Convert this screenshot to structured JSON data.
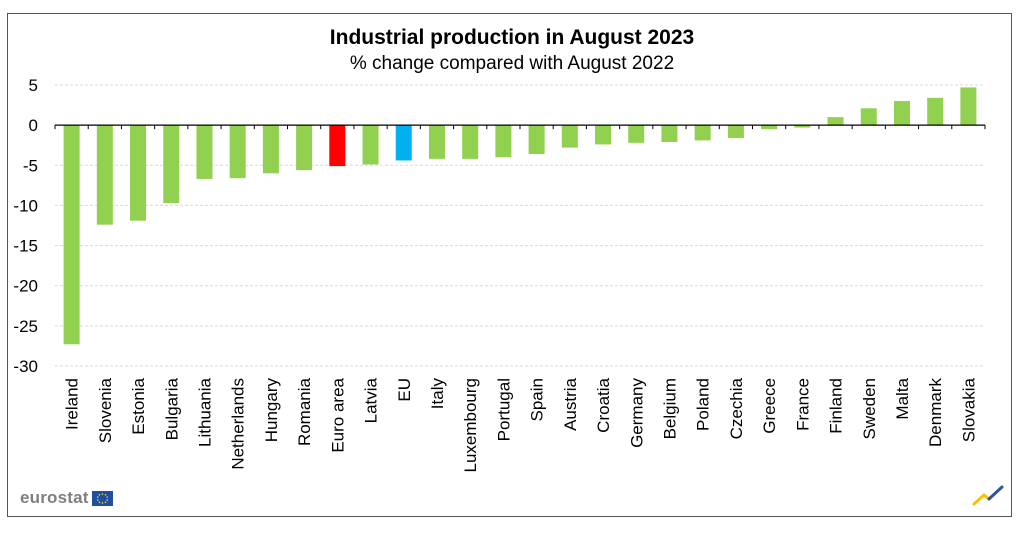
{
  "title": "Industrial production in August 2023",
  "subtitle": "% change compared with August 2022",
  "logo_text": "eurostat",
  "colors": {
    "default_bar": "#92d050",
    "euro_area_bar": "#ff0000",
    "eu_bar": "#00b0f0",
    "grid": "#d9d9d9",
    "axis": "#000000",
    "logo_text": "#7f7f7f",
    "eu_flag_blue": "#1f4fa3",
    "eu_flag_stars": "#ffdd00"
  },
  "chart_data": {
    "type": "bar",
    "categories": [
      "Ireland",
      "Slovenia",
      "Estonia",
      "Bulgaria",
      "Lithuania",
      "Netherlands",
      "Hungary",
      "Romania",
      "Euro area",
      "Latvia",
      "EU",
      "Italy",
      "Luxembourg",
      "Portugal",
      "Spain",
      "Austria",
      "Croatia",
      "Germany",
      "Belgium",
      "Poland",
      "Czechia",
      "Greece",
      "France",
      "Finland",
      "Sweden",
      "Malta",
      "Denmark",
      "Slovakia"
    ],
    "values": [
      -27.3,
      -12.4,
      -11.9,
      -9.7,
      -6.7,
      -6.6,
      -6.0,
      -5.6,
      -5.1,
      -4.9,
      -4.4,
      -4.2,
      -4.2,
      -4.0,
      -3.6,
      -2.8,
      -2.4,
      -2.2,
      -2.1,
      -1.9,
      -1.6,
      -0.5,
      -0.3,
      1.0,
      2.1,
      3.0,
      3.4,
      4.7
    ],
    "highlight": {
      "Euro area": "euro_area_bar",
      "EU": "eu_bar"
    },
    "yticks": [
      5,
      0,
      -5,
      -10,
      -15,
      -20,
      -25,
      -30
    ],
    "ylim": [
      -30,
      5
    ],
    "grid": true,
    "title": "Industrial production in August 2023",
    "subtitle": "% change compared with August 2022",
    "xlabel": "",
    "ylabel": ""
  }
}
